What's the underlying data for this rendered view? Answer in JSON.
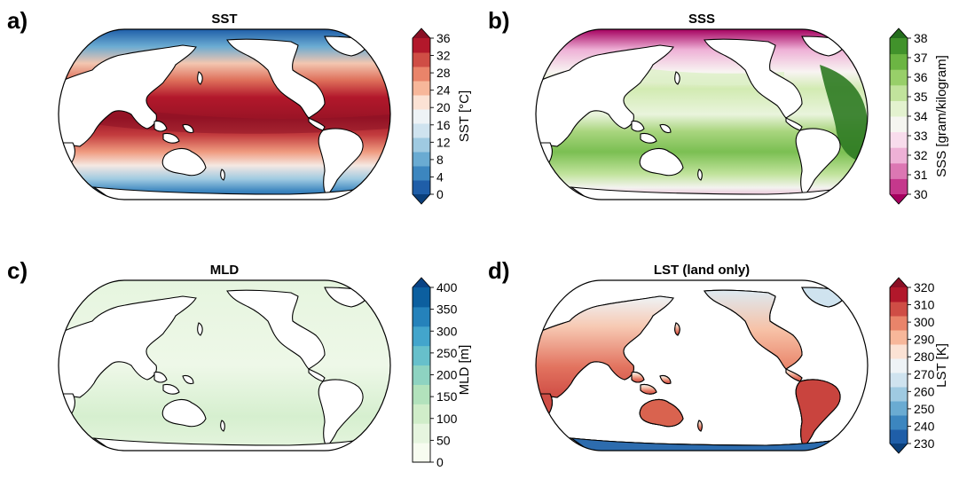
{
  "panels": [
    {
      "letter": "a)",
      "title": "SST",
      "colorbar": {
        "label": "SST [°C]",
        "ticks": [
          "0",
          "4",
          "8",
          "12",
          "16",
          "20",
          "24",
          "28",
          "32",
          "36"
        ],
        "min": 0,
        "max": 36,
        "extend": "both",
        "colors": [
          "#0b3f7a",
          "#1f5ea8",
          "#3c86bf",
          "#6aabd2",
          "#9fcae1",
          "#cfe3ef",
          "#eef3f6",
          "#fbe2d4",
          "#f7b79a",
          "#e9846a",
          "#cf4d45",
          "#b2182b",
          "#8a0f24"
        ]
      }
    },
    {
      "letter": "b)",
      "title": "SSS",
      "colorbar": {
        "label": "SSS [gram/kilogram]",
        "ticks": [
          "30",
          "31",
          "32",
          "33",
          "34",
          "35",
          "36",
          "37",
          "38"
        ],
        "min": 30,
        "max": 38,
        "extend": "both",
        "colors": [
          "#a5005f",
          "#c5388c",
          "#dc77b3",
          "#eeb1d6",
          "#f8dcec",
          "#f5f5f0",
          "#e3f2cf",
          "#c1e39c",
          "#98cf69",
          "#6cb543",
          "#41922b",
          "#246d1d"
        ]
      }
    },
    {
      "letter": "c)",
      "title": "MLD",
      "colorbar": {
        "label": "MLD [m]",
        "ticks": [
          "0",
          "50",
          "100",
          "150",
          "200",
          "250",
          "300",
          "350",
          "400"
        ],
        "min": 0,
        "max": 400,
        "extend": "max",
        "colors": [
          "#f7fcf0",
          "#e6f5df",
          "#d0edc9",
          "#b2e2bc",
          "#8ed3c1",
          "#67c0cb",
          "#43a5cc",
          "#2582bb",
          "#0c5f9f",
          "#084385"
        ]
      }
    },
    {
      "letter": "d)",
      "title": "LST (land only)",
      "colorbar": {
        "label": "LST [K]",
        "ticks": [
          "230",
          "240",
          "250",
          "260",
          "270",
          "280",
          "290",
          "300",
          "310",
          "320"
        ],
        "min": 230,
        "max": 320,
        "extend": "both",
        "colors": [
          "#0b3f7a",
          "#1f5ea8",
          "#3c86bf",
          "#6aabd2",
          "#9fcae1",
          "#cfe3ef",
          "#eef3f6",
          "#fbe2d4",
          "#f7b79a",
          "#e9846a",
          "#cf4d45",
          "#b2182b",
          "#8a0f24"
        ]
      }
    }
  ]
}
